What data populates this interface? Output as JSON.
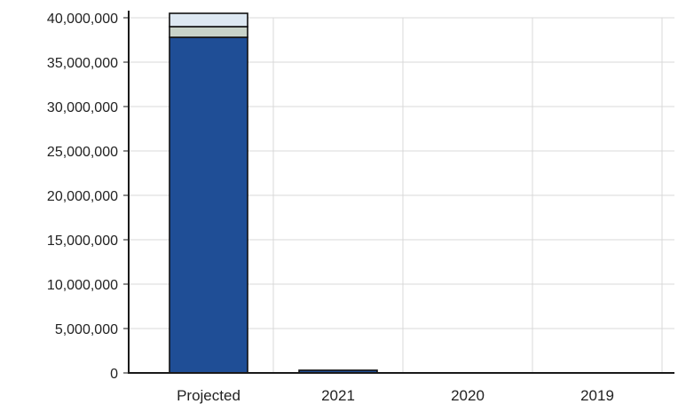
{
  "chart_data": {
    "type": "bar",
    "stacked": true,
    "categories": [
      "Projected",
      "2021",
      "2020",
      "2019"
    ],
    "series": [
      {
        "values": [
          37800000,
          250000,
          0,
          0
        ],
        "color": "#1f4e96"
      },
      {
        "values": [
          1200000,
          0,
          0,
          0
        ],
        "color": "#c8d3c9"
      },
      {
        "values": [
          1500000,
          0,
          0,
          0
        ],
        "color": "#dde8f2"
      }
    ],
    "yticks": [
      "40,000,000",
      "35,000,000",
      "30,000,000",
      "25,000,000",
      "20,000,000",
      "15,000,000",
      "10,000,000",
      "5,000,000",
      "0"
    ],
    "ylim": [
      0,
      40000000
    ],
    "grid": true,
    "legend": "none"
  }
}
